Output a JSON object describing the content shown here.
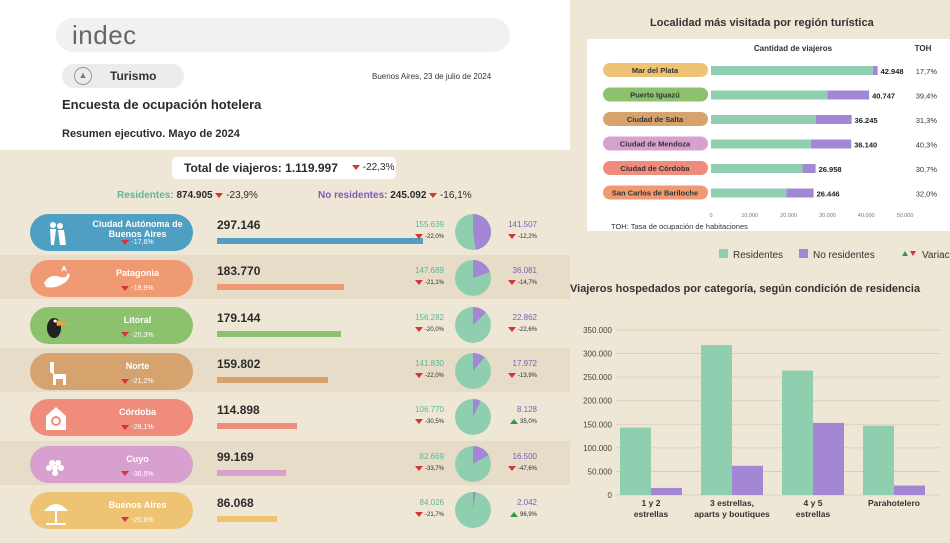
{
  "header": {
    "logo": "indec",
    "category": "Turismo",
    "date": "Buenos Aires, 23 de julio de 2024",
    "title": "Encuesta de ocupación hotelera",
    "subtitle": "Resumen ejecutivo. Mayo de 2024"
  },
  "totals": {
    "label": "Total de viajeros: 1.119.997",
    "pct": "-22,3%",
    "residentes_label": "Residentes:",
    "residentes_value": "874.905",
    "residentes_pct": "-23,9%",
    "noresidentes_label": "No residentes:",
    "noresidentes_value": "245.092",
    "noresidentes_pct": "-16,1%"
  },
  "colors": {
    "residentes": "#8fcfb0",
    "noresidentes": "#a487d4",
    "down": "#d6333a",
    "up": "#2f9a4f"
  },
  "regions": [
    {
      "name": "Ciudad Autónoma de Buenos Aires",
      "pct": "-17,6%",
      "total": "297.146",
      "total_num": 297146,
      "res": "155.639",
      "res_num": 155639,
      "res_pct": "-22,0%",
      "res_dir": "down",
      "nr": "141.507",
      "nr_num": 141507,
      "nr_pct": "-12,2%",
      "nr_dir": "down",
      "color": "#4e9fc2",
      "icon": "tango-dancers-icon"
    },
    {
      "name": "Patagonia",
      "pct": "-19,9%",
      "total": "183.770",
      "total_num": 183770,
      "res": "147.689",
      "res_num": 147689,
      "res_pct": "-21,1%",
      "res_dir": "down",
      "nr": "36.081",
      "nr_num": 36081,
      "nr_pct": "-14,7%",
      "nr_dir": "down",
      "color": "#ef9a72",
      "icon": "whale-icon"
    },
    {
      "name": "Litoral",
      "pct": "-20,3%",
      "total": "179.144",
      "total_num": 179144,
      "res": "156.282",
      "res_num": 156282,
      "res_pct": "-20,0%",
      "res_dir": "down",
      "nr": "22.862",
      "nr_num": 22862,
      "nr_pct": "-22,6%",
      "nr_dir": "down",
      "color": "#8cc26d",
      "icon": "toucan-icon"
    },
    {
      "name": "Norte",
      "pct": "-21,2%",
      "total": "159.802",
      "total_num": 159802,
      "res": "141.830",
      "res_num": 141830,
      "res_pct": "-22,0%",
      "res_dir": "down",
      "nr": "17.972",
      "nr_num": 17972,
      "nr_pct": "-13,9%",
      "nr_dir": "down",
      "color": "#d6a36f",
      "icon": "llama-icon"
    },
    {
      "name": "Córdoba",
      "pct": "-28,1%",
      "total": "114.898",
      "total_num": 114898,
      "res": "106.770",
      "res_num": 106770,
      "res_pct": "-30,5%",
      "res_dir": "down",
      "nr": "8.128",
      "nr_num": 8128,
      "nr_pct": "35,0%",
      "nr_dir": "up",
      "color": "#ef8c7c",
      "icon": "cuckoo-clock-icon"
    },
    {
      "name": "Cuyo",
      "pct": "-36,5%",
      "total": "99.169",
      "total_num": 99169,
      "res": "82.669",
      "res_num": 82669,
      "res_pct": "-33,7%",
      "res_dir": "down",
      "nr": "16.500",
      "nr_num": 16500,
      "nr_pct": "-47,6%",
      "nr_dir": "down",
      "color": "#d8a0cf",
      "icon": "grapes-icon"
    },
    {
      "name": "Buenos Aires",
      "pct": "-20,6%",
      "total": "86.068",
      "total_num": 86068,
      "res": "84.026",
      "res_num": 84026,
      "res_pct": "-21,7%",
      "res_dir": "down",
      "nr": "2.042",
      "nr_num": 2042,
      "nr_pct": "96,9%",
      "nr_dir": "up",
      "color": "#eec374",
      "icon": "beach-umbrella-icon"
    }
  ],
  "chart_data": [
    {
      "type": "bar",
      "title": "Localidad más visitada por región turística",
      "subtitle": "Cantidad de viajeros",
      "toh_header": "TOH",
      "toh_note": "TOH: Tasa de ocupación de habitaciones",
      "categories": [
        "Mar del Plata",
        "Puerto Iguazú",
        "Ciudad de Salta",
        "Ciudad de Mendoza",
        "Ciudad de Córdoba",
        "San Carlos de Bariloche"
      ],
      "category_colors": [
        "#eec374",
        "#8cc26d",
        "#d6a36f",
        "#d8a0cf",
        "#ef8c7c",
        "#ef9a72"
      ],
      "totals": [
        "42.948",
        "40.747",
        "36.245",
        "36.140",
        "26.958",
        "26.446"
      ],
      "toh": [
        "17,7%",
        "39,4%",
        "31,3%",
        "40,3%",
        "30,7%",
        "32,0%"
      ],
      "series": [
        {
          "name": "Residentes",
          "values": [
            41700,
            30000,
            27000,
            25800,
            23600,
            19400
          ]
        },
        {
          "name": "No residentes",
          "values": [
            1248,
            10747,
            9245,
            10340,
            3358,
            7046
          ]
        }
      ],
      "xlim": [
        0,
        50000
      ],
      "xticks": [
        "0",
        "10.000",
        "20.000",
        "30.000",
        "40.000",
        "50.000"
      ],
      "legend": [
        "Residentes",
        "No residentes",
        "Variación"
      ]
    },
    {
      "type": "bar",
      "title": "Viajeros hospedados por categoría, según condición de residencia",
      "categories": [
        [
          "1 y 2",
          "estrellas"
        ],
        [
          "3 estrellas,",
          "aparts y boutiques"
        ],
        [
          "4 y 5",
          "estrellas"
        ],
        [
          "Parahotelero"
        ]
      ],
      "series": [
        {
          "name": "Residentes",
          "values": [
            143000,
            318000,
            264000,
            147000
          ]
        },
        {
          "name": "No residentes",
          "values": [
            15000,
            62000,
            153000,
            20000
          ]
        }
      ],
      "ylim": [
        0,
        350000
      ],
      "yticks": [
        "0",
        "50.000",
        "100.000",
        "150.000",
        "200.000",
        "250.000",
        "300.000",
        "350.000"
      ]
    }
  ]
}
